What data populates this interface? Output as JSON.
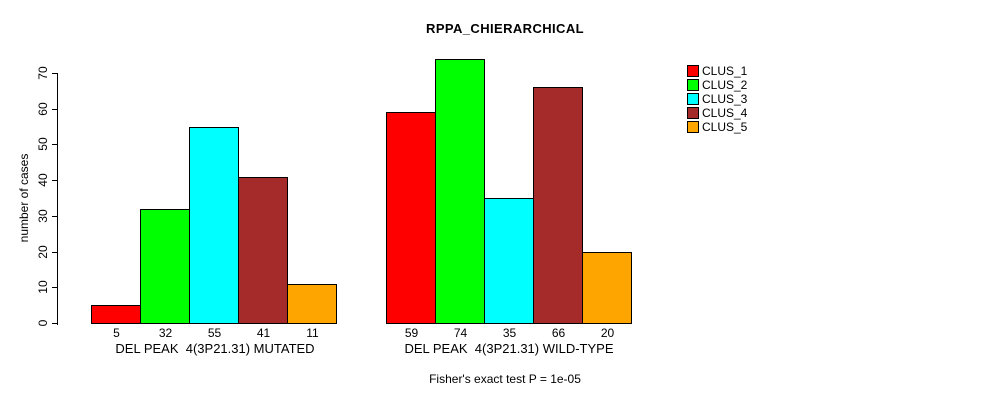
{
  "chart_data": {
    "type": "bar",
    "title": "RPPA_CHIERARCHICAL",
    "ylabel": "number of cases",
    "xlabel": "",
    "ylim": [
      0,
      70
    ],
    "yticks": [
      0,
      10,
      20,
      30,
      40,
      50,
      60,
      70
    ],
    "grid": false,
    "legend_position": "right",
    "series": [
      {
        "name": "CLUS_1",
        "color": "#FF0000"
      },
      {
        "name": "CLUS_2",
        "color": "#00FF00"
      },
      {
        "name": "CLUS_3",
        "color": "#00FFFF"
      },
      {
        "name": "CLUS_4",
        "color": "#A52A2A"
      },
      {
        "name": "CLUS_5",
        "color": "#FFA500"
      }
    ],
    "groups": [
      {
        "label": "DEL PEAK  4(3P21.31) MUTATED",
        "values": [
          5,
          32,
          55,
          41,
          11
        ]
      },
      {
        "label": "DEL PEAK  4(3P21.31) WILD-TYPE",
        "values": [
          59,
          74,
          35,
          66,
          20
        ]
      }
    ],
    "footnote": "Fisher's exact test P = 1e-05"
  }
}
